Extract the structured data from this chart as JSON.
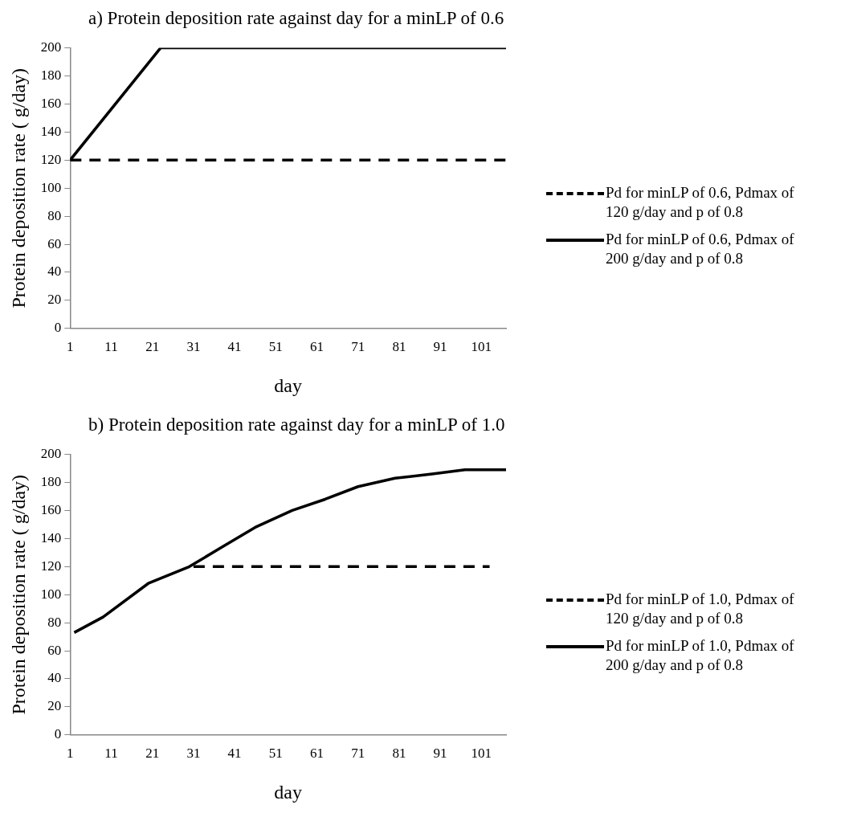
{
  "chart_data": [
    {
      "type": "line",
      "title": "a) Protein deposition rate against day for a minLP of 0.6",
      "xlabel": "day",
      "ylabel": "Protein deposition rate ( g/day)",
      "xlim": [
        1,
        107
      ],
      "xticks": [
        1,
        11,
        21,
        31,
        41,
        51,
        61,
        71,
        81,
        91,
        101
      ],
      "ylim": [
        0,
        200
      ],
      "yticks": [
        0,
        20,
        40,
        60,
        80,
        100,
        120,
        140,
        160,
        180,
        200
      ],
      "grid": false,
      "legend": "right",
      "marker": "none",
      "series": [
        {
          "name": "Pd for minLP of 0.6, Pdmax of 120 g/day and p of 0.8",
          "color": "#000000",
          "line_style": "dashed",
          "x": [
            1,
            107
          ],
          "values": [
            120,
            120
          ]
        },
        {
          "name": "Pd for minLP of 0.6, Pdmax of 200 g/day and p of 0.8",
          "color": "#000000",
          "line_style": "solid",
          "x": [
            1,
            23,
            107
          ],
          "values": [
            120,
            200,
            200
          ]
        }
      ]
    },
    {
      "type": "line",
      "title": "b) Protein deposition rate against day for a minLP of 1.0",
      "xlabel": "day",
      "ylabel": "Protein deposition rate ( g/day)",
      "xlim": [
        1,
        107
      ],
      "xticks": [
        1,
        11,
        21,
        31,
        41,
        51,
        61,
        71,
        81,
        91,
        101
      ],
      "ylim": [
        0,
        200
      ],
      "yticks": [
        0,
        20,
        40,
        60,
        80,
        100,
        120,
        140,
        160,
        180,
        200
      ],
      "grid": false,
      "legend": "right",
      "marker": "none",
      "series": [
        {
          "name": "Pd for minLP of 1.0, Pdmax of 120 g/day and p of 0.8",
          "color": "#000000",
          "line_style": "dashed",
          "x": [
            31,
            103
          ],
          "values": [
            120,
            120
          ]
        },
        {
          "name": "Pd for minLP of 1.0, Pdmax of 200 g/day and p of 0.8",
          "color": "#000000",
          "line_style": "solid",
          "x": [
            2,
            9,
            20,
            30,
            38,
            46,
            55,
            63,
            71,
            80,
            89,
            97,
            107
          ],
          "values": [
            73,
            84,
            108,
            120,
            134,
            148,
            160,
            168,
            177,
            183,
            186,
            189,
            189
          ]
        }
      ]
    }
  ]
}
